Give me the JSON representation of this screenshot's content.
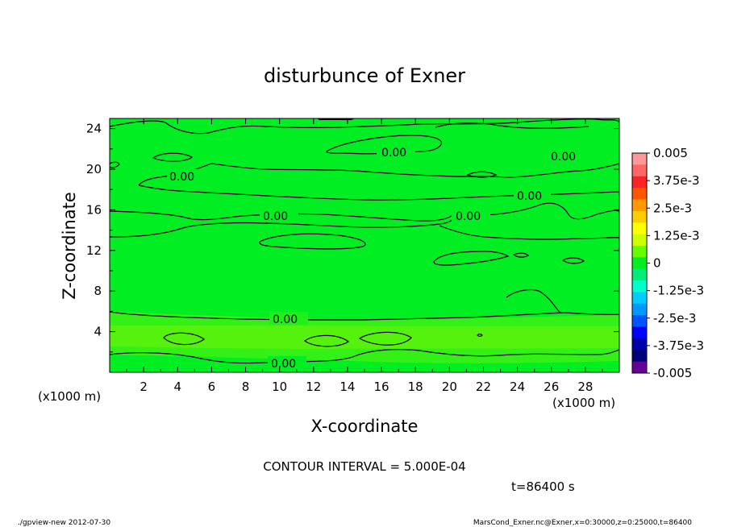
{
  "chart_data": {
    "type": "heatmap",
    "title": "disturbunce of Exner",
    "xlabel": "X-coordinate",
    "ylabel": "Z-coordinate",
    "x_unit_label": "(x1000 m)",
    "y_unit_label": "(x1000 m)",
    "xlim": [
      0,
      30
    ],
    "ylim": [
      0,
      25
    ],
    "x_ticks": [
      2,
      4,
      6,
      8,
      10,
      12,
      14,
      16,
      18,
      20,
      22,
      24,
      26,
      28
    ],
    "y_ticks": [
      4,
      8,
      12,
      16,
      20,
      24
    ],
    "colorbar": {
      "labels": [
        "0.005",
        "3.75e-3",
        "2.5e-3",
        "1.25e-3",
        "0",
        "-1.25e-3",
        "-2.5e-3",
        "-3.75e-3",
        "-0.005"
      ],
      "colors": [
        "#ff9999",
        "#ff6666",
        "#ff2222",
        "#ff5500",
        "#ff9900",
        "#ffcc00",
        "#ffff00",
        "#ccff00",
        "#66ff00",
        "#00ee22",
        "#00ee77",
        "#00ffcc",
        "#00ccff",
        "#0099ff",
        "#0055ff",
        "#0000ff",
        "#0000aa",
        "#000077",
        "#660099"
      ]
    },
    "contour_label": "0.00",
    "contour_interval_text": "CONTOUR INTERVAL = 5.000E-04",
    "time_text": "t=86400 s",
    "footer_left": "./gpview-new   2012-07-30",
    "footer_right": "MarsCond_Exner.nc@Exner,x=0:30000,z=0:25000,t=86400",
    "grid": false
  }
}
